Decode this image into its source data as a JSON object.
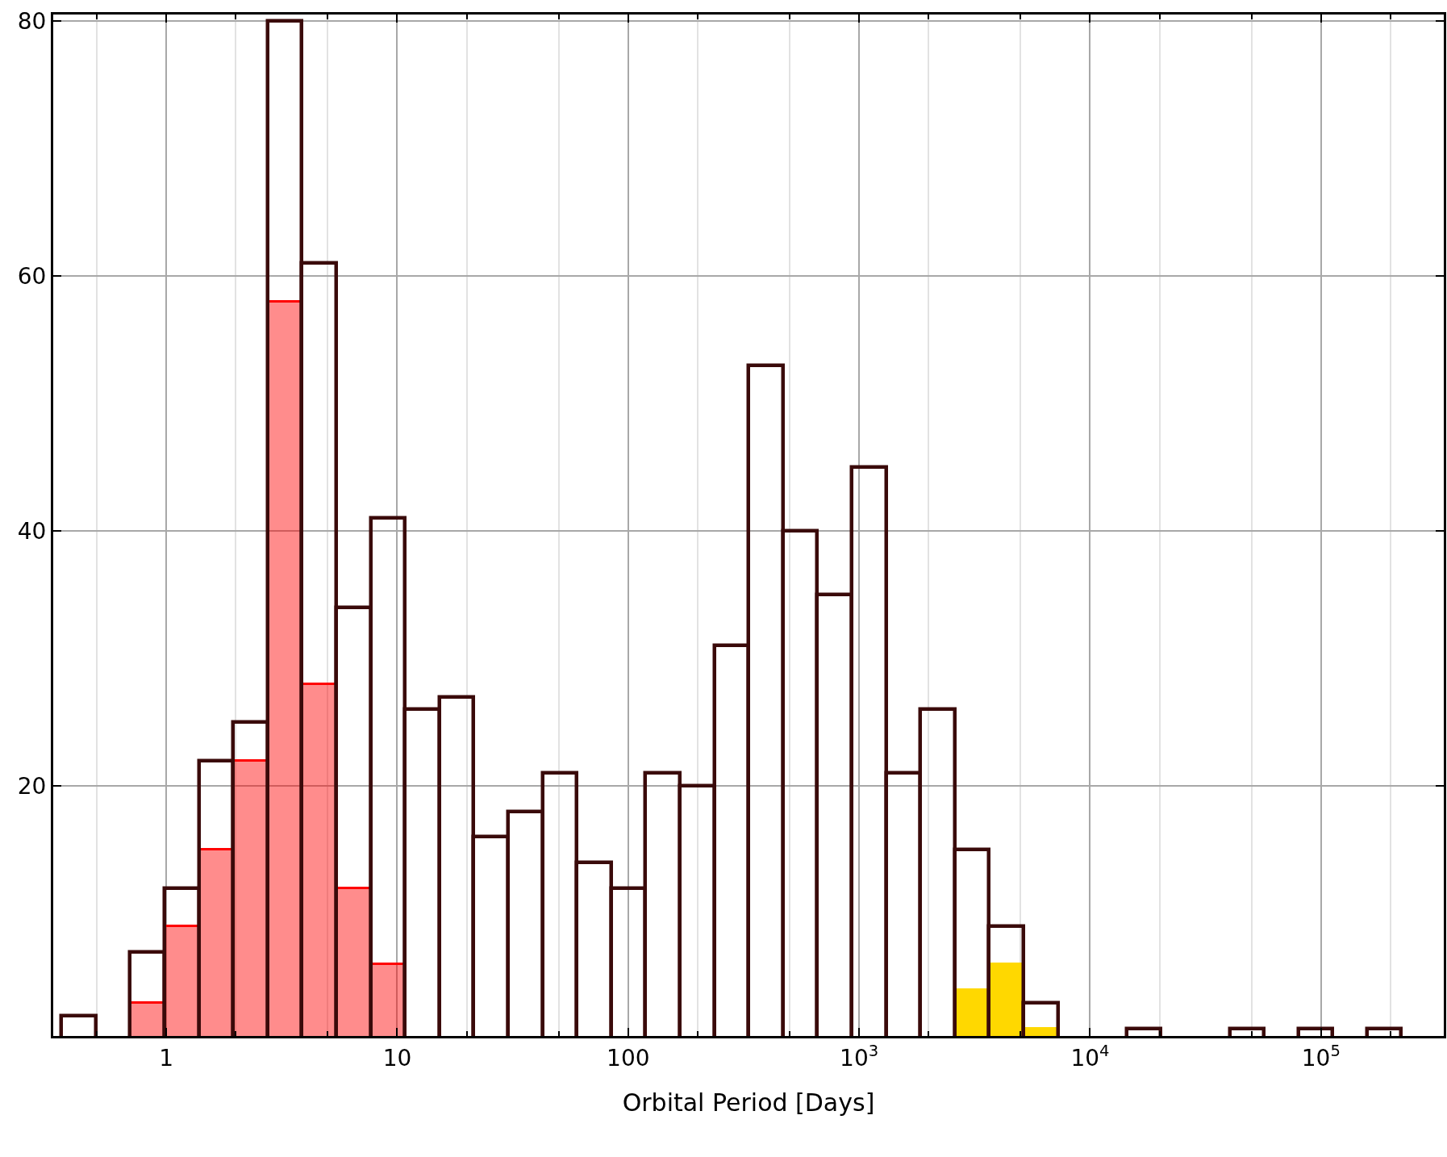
{
  "chart_data": {
    "type": "histogram",
    "xlabel": "Orbital Period [Days]",
    "bins": [
      0.352,
      0.496,
      0.698,
      0.983,
      1.385,
      1.951,
      2.748,
      3.87,
      5.451,
      7.678,
      10.81,
      15.23,
      21.45,
      30.22,
      42.56,
      59.95,
      84.45,
      118.9,
      167.5,
      236.0,
      332.4,
      468.2,
      659.4,
      928.8,
      1308,
      1843,
      2596,
      3656,
      5150,
      7254,
      10210,
      14390,
      20270,
      28550,
      40210,
      56630,
      79770,
      112300,
      158200,
      222800
    ],
    "series": [
      {
        "color": "#ff0000",
        "values": [
          null,
          null,
          3,
          9,
          15,
          22,
          58,
          28,
          12,
          6,
          null,
          null,
          null,
          null,
          null,
          null,
          null,
          null,
          null,
          null,
          null,
          null,
          null,
          null,
          null,
          null,
          null,
          null,
          null,
          null,
          null,
          null,
          null,
          null,
          null,
          null,
          null,
          null,
          null
        ]
      },
      {
        "color": "#ffd800",
        "values": [
          null,
          null,
          null,
          null,
          null,
          null,
          null,
          null,
          null,
          null,
          null,
          null,
          null,
          null,
          null,
          null,
          null,
          null,
          null,
          null,
          null,
          null,
          null,
          null,
          null,
          null,
          4,
          6,
          1,
          null,
          null,
          null,
          null,
          null,
          null,
          null,
          null,
          null,
          null
        ]
      },
      {
        "line_style": "solid",
        "color": "#3a0a0a",
        "values": [
          2,
          null,
          7,
          12,
          22,
          25,
          80,
          61,
          34,
          41,
          26,
          27,
          16,
          18,
          21,
          14,
          12,
          21,
          20,
          31,
          53,
          40,
          35,
          45,
          21,
          26,
          15,
          9,
          3,
          null,
          null,
          1,
          null,
          null,
          1,
          null,
          1,
          null,
          1
        ]
      }
    ],
    "log": "x",
    "xlim": [
      0.324,
      340000
    ],
    "xticks": [
      1,
      10,
      100,
      {
        "value": 1000,
        "label": "10$^{3}$"
      },
      {
        "value": 10000,
        "label": "10$^{4}$"
      },
      {
        "value": 100000,
        "label": "10$^{5}$"
      }
    ],
    "ylim": [
      0.4,
      80.5
    ],
    "yticks": [
      20,
      40,
      60,
      80
    ],
    "grid": true
  }
}
